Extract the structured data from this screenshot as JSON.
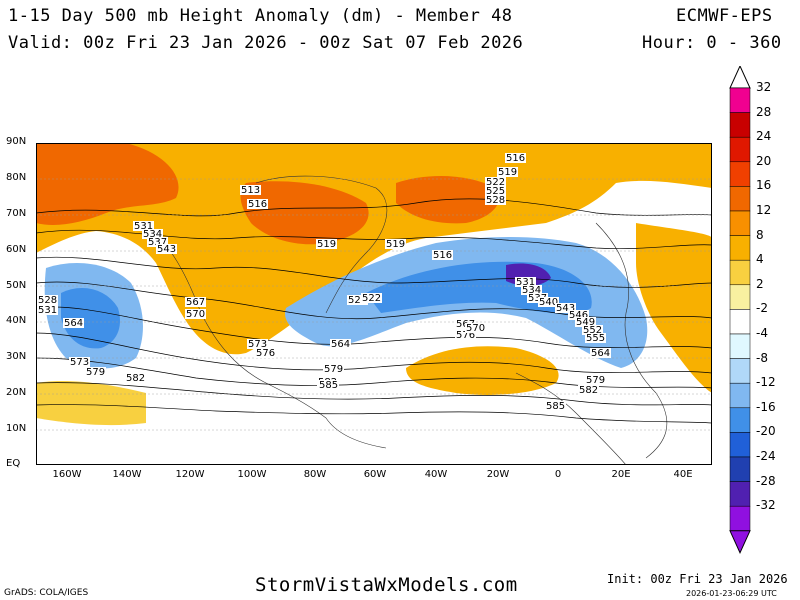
{
  "header": {
    "title": "1-15 Day 500 mb Height Anomaly (dm) - Member 48",
    "model": "ECMWF-EPS",
    "valid": "Valid: 00z Fri 23 Jan 2026 - 00z Sat 07 Feb 2026",
    "hours": "Hour: 0 - 360"
  },
  "map": {
    "lat_labels": [
      "90N",
      "80N",
      "70N",
      "60N",
      "50N",
      "40N",
      "30N",
      "20N",
      "10N",
      "EQ"
    ],
    "lon_labels": [
      "160W",
      "140W",
      "120W",
      "100W",
      "80W",
      "60W",
      "40W",
      "20W",
      "0",
      "20E",
      "40E"
    ],
    "contour_labels": [
      "516",
      "519",
      "522",
      "525",
      "528",
      "513",
      "516",
      "519",
      "519",
      "516",
      "531",
      "534",
      "537",
      "543",
      "528",
      "531",
      "567",
      "570",
      "573",
      "576",
      "564",
      "573",
      "579",
      "582",
      "564",
      "528",
      "522",
      "579",
      "582",
      "585",
      "531",
      "534",
      "537",
      "540",
      "543",
      "546",
      "549",
      "552",
      "555",
      "564",
      "576",
      "567",
      "570",
      "579",
      "582",
      "585"
    ]
  },
  "colorbar": {
    "labels": [
      "32",
      "28",
      "24",
      "20",
      "16",
      "12",
      "8",
      "4",
      "2",
      "-2",
      "-4",
      "-8",
      "-12",
      "-16",
      "-20",
      "-24",
      "-28",
      "-32"
    ],
    "colors": [
      "#f00090",
      "#c80000",
      "#e01800",
      "#f04000",
      "#f06800",
      "#f89000",
      "#f8b000",
      "#f8d040",
      "#f8f0a0",
      "#ffffff",
      "#e0f8ff",
      "#b0d8f8",
      "#80b8f0",
      "#4090e8",
      "#2060d8",
      "#2040b0",
      "#5020b0",
      "#9010e0"
    ]
  },
  "footer": {
    "grads": "GrADS: COLA/IGES",
    "site": "StormVistaWxModels.com",
    "init": "Init: 00z Fri 23 Jan 2026",
    "generated": "2026-01-23-06:29 UTC"
  }
}
